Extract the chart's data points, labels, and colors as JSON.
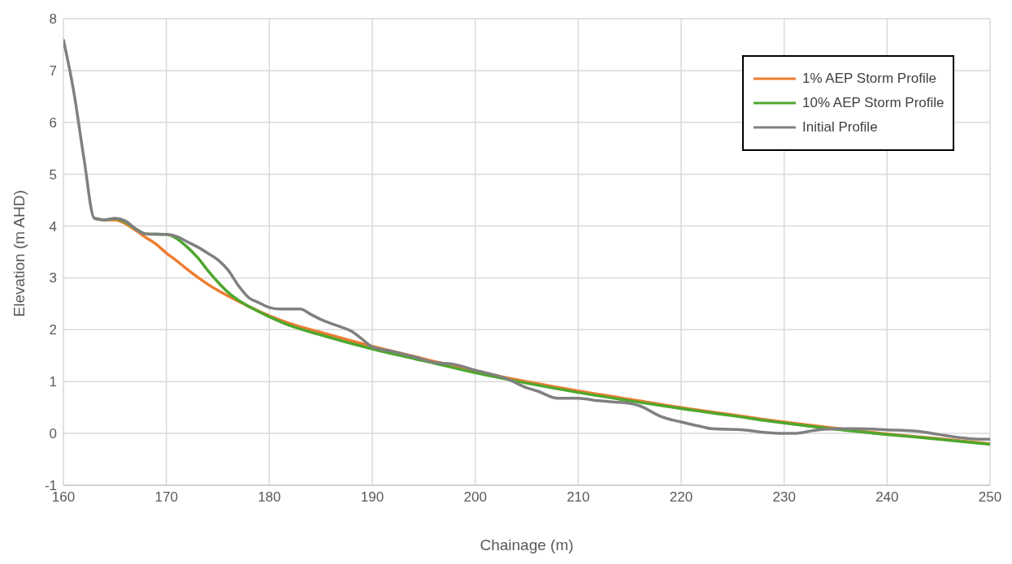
{
  "chart_data": {
    "type": "line",
    "xlabel": "Chainage (m)",
    "ylabel": "Elevation (m AHD)",
    "xlim": [
      160,
      250
    ],
    "xticks": [
      160,
      170,
      180,
      190,
      200,
      210,
      220,
      230,
      240,
      250
    ],
    "ylim": [
      -1,
      8
    ],
    "yticks": [
      -1,
      0,
      1,
      2,
      3,
      4,
      5,
      6,
      7,
      8
    ],
    "grid": true,
    "legend": "top right",
    "marker": "none",
    "line_style": "solid",
    "series": [
      {
        "name": "1% AEP Storm Profile",
        "color": "#ed7d31",
        "x": [
          163,
          164,
          165,
          166,
          167,
          168,
          169,
          170,
          171,
          172,
          173,
          174,
          176,
          178,
          180,
          182,
          185,
          190,
          195,
          200,
          205,
          210,
          215,
          220,
          225,
          230,
          235,
          240,
          245,
          250
        ],
        "values": [
          4.15,
          4.12,
          4.12,
          4.05,
          3.92,
          3.78,
          3.65,
          3.48,
          3.33,
          3.17,
          3.02,
          2.88,
          2.65,
          2.45,
          2.27,
          2.12,
          1.95,
          1.68,
          1.44,
          1.2,
          1.0,
          0.82,
          0.66,
          0.5,
          0.36,
          0.22,
          0.1,
          -0.01,
          -0.1,
          -0.2
        ]
      },
      {
        "name": "10% AEP Storm Profile",
        "color": "#4ea72e",
        "x": [
          163,
          164,
          165,
          166,
          167,
          168,
          170,
          171,
          172,
          173,
          174,
          175,
          176,
          177,
          178,
          180,
          182,
          185,
          190,
          195,
          200,
          205,
          210,
          215,
          220,
          225,
          230,
          235,
          240,
          245,
          250
        ],
        "values": [
          4.15,
          4.12,
          4.14,
          4.08,
          3.95,
          3.85,
          3.84,
          3.76,
          3.6,
          3.4,
          3.15,
          2.92,
          2.72,
          2.57,
          2.45,
          2.25,
          2.08,
          1.9,
          1.63,
          1.4,
          1.17,
          0.97,
          0.79,
          0.63,
          0.48,
          0.34,
          0.2,
          0.08,
          -0.02,
          -0.11,
          -0.21
        ]
      },
      {
        "name": "Initial Profile",
        "color": "#808080",
        "x": [
          160,
          161,
          162,
          163,
          164,
          165,
          166,
          167,
          168,
          170,
          171,
          172,
          173,
          174,
          175,
          176,
          177,
          178,
          179,
          180,
          181,
          182,
          183,
          184,
          185,
          186,
          187,
          188,
          189,
          190,
          192,
          194,
          196,
          198,
          200,
          202,
          203,
          205,
          206,
          208,
          210,
          212,
          214,
          215,
          216,
          218,
          220,
          222,
          223,
          226,
          228,
          230,
          231,
          233,
          235,
          237,
          240,
          243,
          245,
          247,
          249,
          250
        ],
        "values": [
          7.6,
          6.6,
          5.3,
          4.15,
          4.12,
          4.15,
          4.1,
          3.95,
          3.85,
          3.84,
          3.8,
          3.7,
          3.6,
          3.48,
          3.35,
          3.15,
          2.85,
          2.62,
          2.52,
          2.43,
          2.4,
          2.4,
          2.4,
          2.3,
          2.2,
          2.12,
          2.05,
          1.97,
          1.82,
          1.67,
          1.58,
          1.48,
          1.37,
          1.33,
          1.22,
          1.12,
          1.06,
          0.88,
          0.82,
          0.68,
          0.68,
          0.63,
          0.6,
          0.58,
          0.53,
          0.33,
          0.22,
          0.13,
          0.09,
          0.07,
          0.02,
          0.0,
          0.0,
          0.06,
          0.09,
          0.09,
          0.07,
          0.04,
          -0.02,
          -0.08,
          -0.11,
          -0.11
        ]
      }
    ]
  }
}
